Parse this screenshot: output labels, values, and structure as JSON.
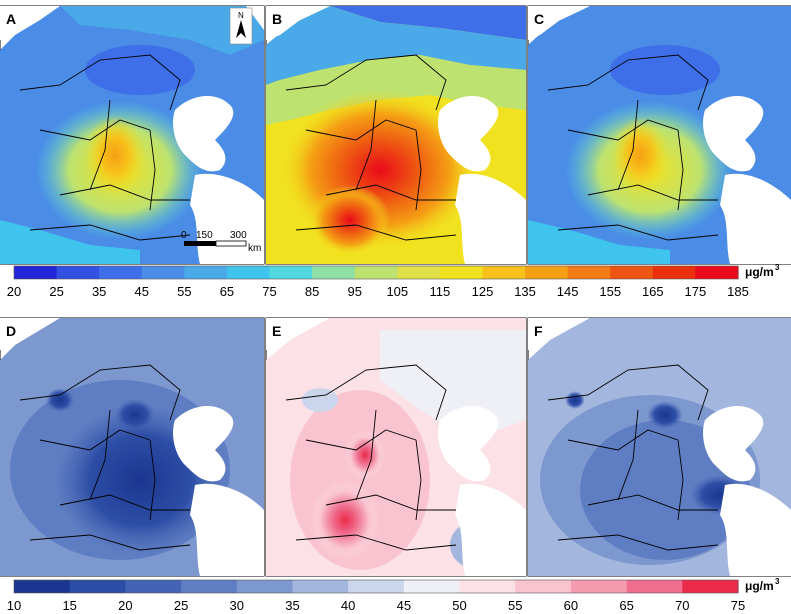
{
  "panels": [
    {
      "id": "A",
      "label": "A"
    },
    {
      "id": "B",
      "label": "B"
    },
    {
      "id": "C",
      "label": "C"
    },
    {
      "id": "D",
      "label": "D"
    },
    {
      "id": "E",
      "label": "E"
    },
    {
      "id": "F",
      "label": "F"
    }
  ],
  "north_arrow": {
    "label": "N"
  },
  "scale_bar": {
    "tick_0": "0",
    "tick_150": "150",
    "tick_300": "300",
    "unit": "km"
  },
  "top_legend": {
    "unit": "μg/m",
    "unit_superscript": "3",
    "ticks": [
      "20",
      "25",
      "35",
      "45",
      "55",
      "65",
      "75",
      "85",
      "95",
      "105",
      "115",
      "125",
      "135",
      "145",
      "155",
      "165",
      "175",
      "185"
    ],
    "colors": [
      "#2424d8",
      "#3350e2",
      "#3f6fe8",
      "#4a8ce6",
      "#4aa9e9",
      "#3fc4ee",
      "#52d8df",
      "#8ee0a6",
      "#bde270",
      "#e0e04a",
      "#f1e21f",
      "#f7c11a",
      "#f5a014",
      "#f37b16",
      "#ee5412",
      "#ec2f0c",
      "#ea0a1a"
    ]
  },
  "bottom_legend": {
    "unit": "μg/m",
    "unit_superscript": "3",
    "ticks": [
      "10",
      "15",
      "20",
      "25",
      "30",
      "35",
      "40",
      "45",
      "50",
      "55",
      "60",
      "65",
      "70",
      "75"
    ],
    "colors": [
      "#1b3690",
      "#2d4ea6",
      "#4363b4",
      "#5f7dc2",
      "#7d98cf",
      "#a3b6de",
      "#cbd6ec",
      "#efeff6",
      "#fce1e6",
      "#f9c3cf",
      "#f59bb0",
      "#ef6e8e",
      "#ea2a4a"
    ]
  }
}
